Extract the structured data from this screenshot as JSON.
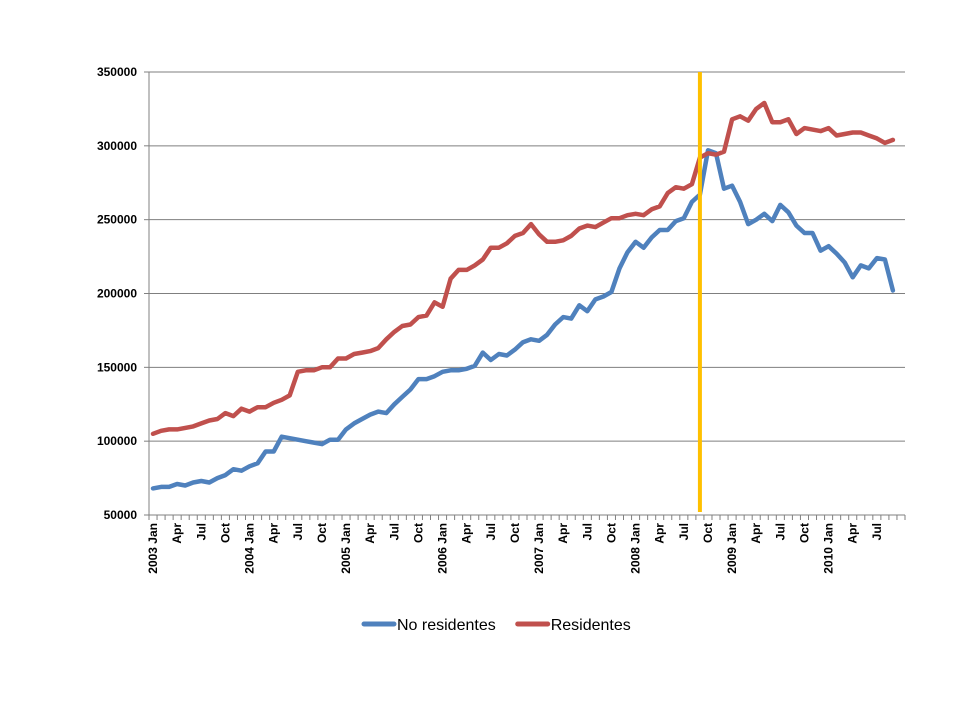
{
  "chart_data": {
    "type": "line",
    "title": "",
    "xlabel": "",
    "ylabel": "",
    "ylim": [
      50000,
      350000
    ],
    "yticks": [
      "50000",
      "100000",
      "150000",
      "200000",
      "250000",
      "300000",
      "350000"
    ],
    "grid": true,
    "legend_position": "bottom",
    "x_tick_labels": [
      "2003 Jan",
      "Apr",
      "Jul",
      "Oct",
      "2004 Jan",
      "Apr",
      "Jul",
      "Oct",
      "2005 Jan",
      "Apr",
      "Jul",
      "Oct",
      "2006 Jan",
      "Apr",
      "Jul",
      "Oct",
      "2007 Jan",
      "Apr",
      "Jul",
      "Oct",
      "2008 Jan",
      "Apr",
      "Jul",
      "Oct",
      "2009 Jan",
      "Apr",
      "Jul",
      "Oct",
      "2010 Jan",
      "Apr",
      "Jul"
    ],
    "x_start": "2003-01",
    "x_end": "2010-10",
    "marker_line": {
      "x": "2008-09",
      "color": "#FFC000"
    },
    "series": [
      {
        "name": "No residentes",
        "color": "#4F81BD",
        "values": [
          68000,
          69000,
          69000,
          71000,
          70000,
          72000,
          73000,
          72000,
          75000,
          77000,
          81000,
          80000,
          83000,
          85000,
          93000,
          93000,
          103000,
          102000,
          101000,
          100000,
          99000,
          98000,
          101000,
          101000,
          108000,
          112000,
          115000,
          118000,
          120000,
          119000,
          125000,
          130000,
          135000,
          142000,
          142000,
          144000,
          147000,
          148000,
          148000,
          149000,
          151000,
          160000,
          155000,
          159000,
          158000,
          162000,
          167000,
          169000,
          168000,
          172000,
          179000,
          184000,
          183000,
          192000,
          188000,
          196000,
          198000,
          201000,
          217000,
          228000,
          235000,
          231000,
          238000,
          243000,
          243000,
          249000,
          251000,
          262000,
          267000,
          297000,
          295000,
          271000,
          273000,
          262000,
          247000,
          250000,
          254000,
          249000,
          260000,
          255000,
          246000,
          241000,
          241000,
          229000,
          232000,
          227000,
          221000,
          211000,
          219000,
          217000,
          224000,
          223000,
          202000
        ]
      },
      {
        "name": "Residentes",
        "color": "#C0504D",
        "values": [
          105000,
          107000,
          108000,
          108000,
          109000,
          110000,
          112000,
          114000,
          115000,
          119000,
          117000,
          122000,
          120000,
          123000,
          123000,
          126000,
          128000,
          131000,
          147000,
          148000,
          148000,
          150000,
          150000,
          156000,
          156000,
          159000,
          160000,
          161000,
          163000,
          169000,
          174000,
          178000,
          179000,
          184000,
          185000,
          194000,
          191000,
          210000,
          216000,
          216000,
          219000,
          223000,
          231000,
          231000,
          234000,
          239000,
          241000,
          247000,
          240000,
          235000,
          235000,
          236000,
          239000,
          244000,
          246000,
          245000,
          248000,
          251000,
          251000,
          253000,
          254000,
          253000,
          257000,
          259000,
          268000,
          272000,
          271000,
          274000,
          292000,
          295000,
          294000,
          296000,
          318000,
          320000,
          317000,
          325000,
          329000,
          316000,
          316000,
          318000,
          308000,
          312000,
          311000,
          310000,
          312000,
          307000,
          308000,
          309000,
          309000,
          307000,
          305000,
          302000,
          304000
        ]
      }
    ]
  }
}
